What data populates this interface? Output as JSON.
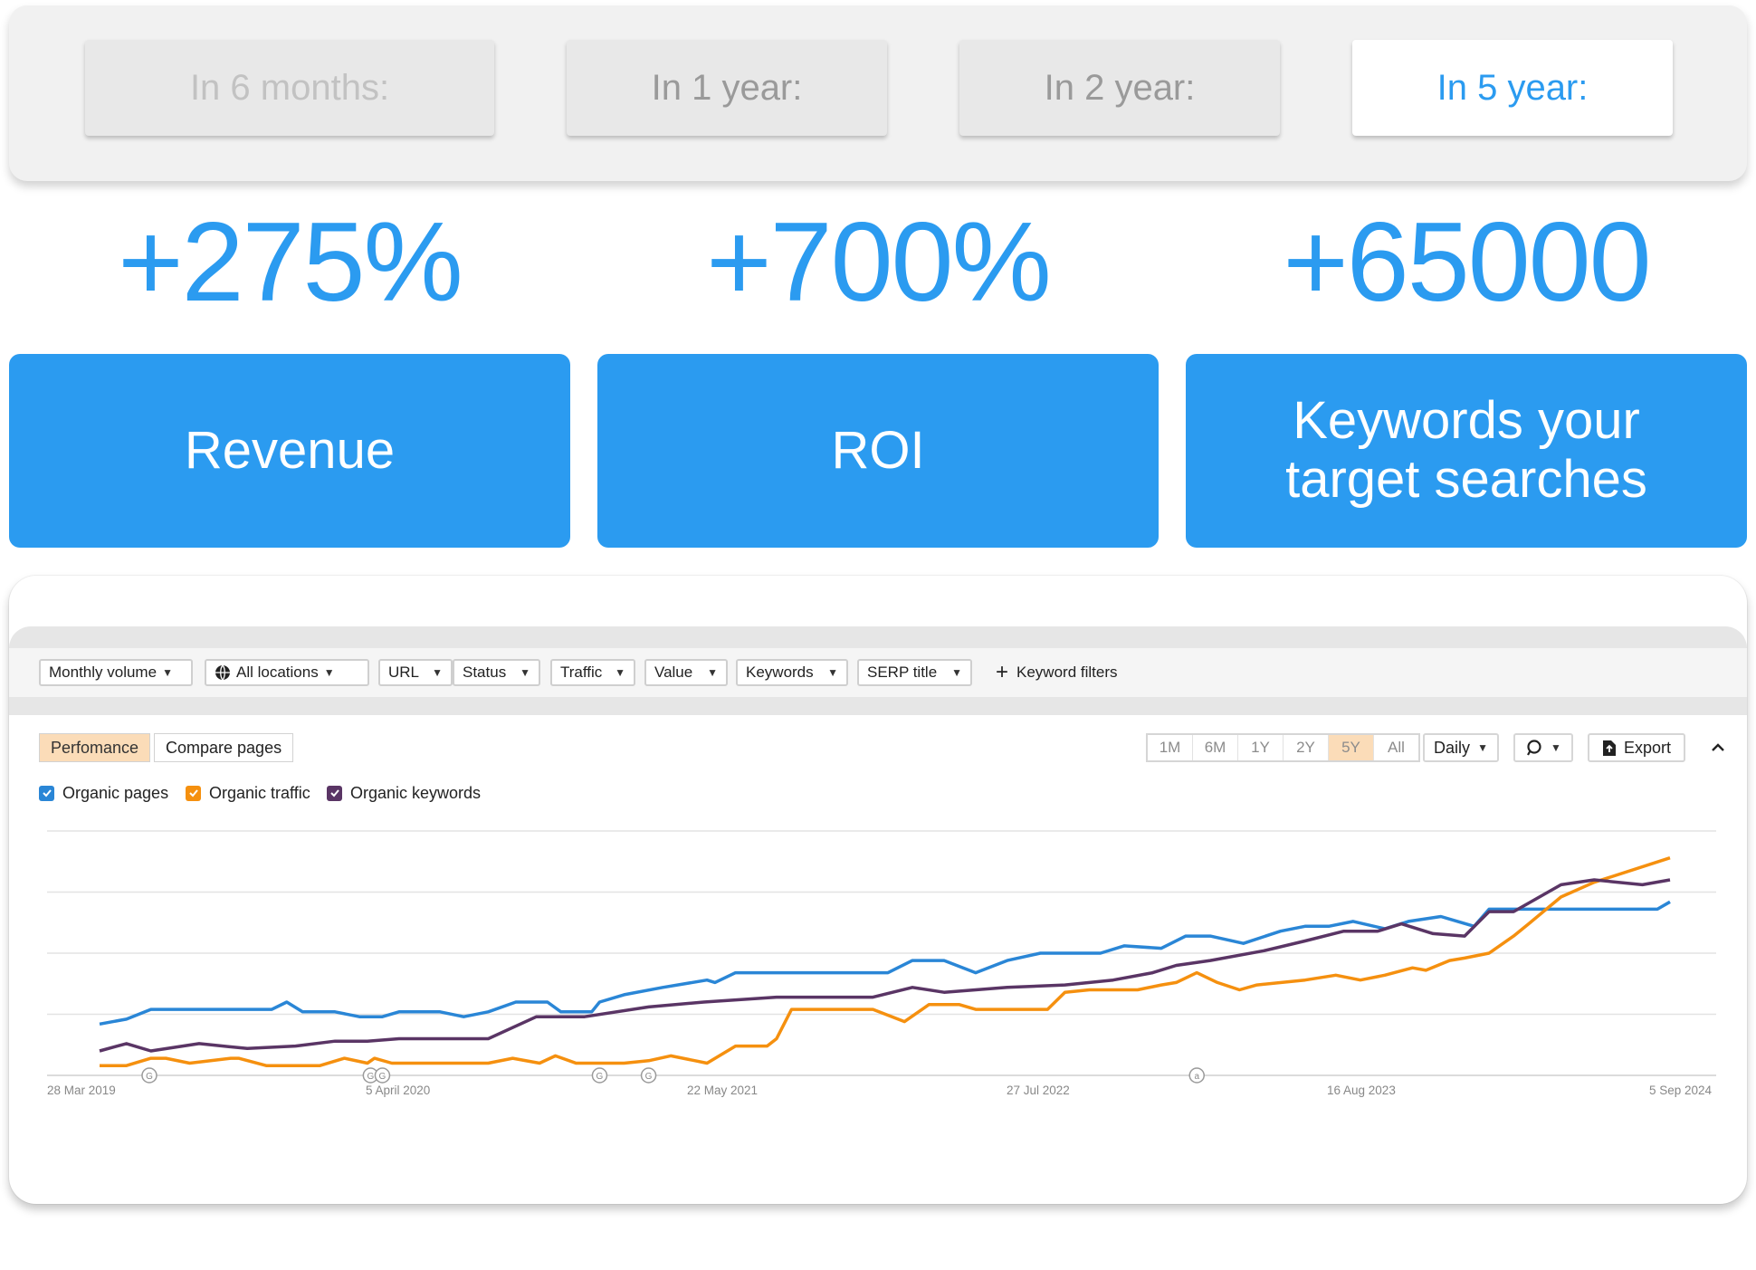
{
  "periods": [
    {
      "label": "In 6 months:",
      "state": "faded"
    },
    {
      "label": "In 1 year:",
      "state": "inactive"
    },
    {
      "label": "In 2 year:",
      "state": "inactive"
    },
    {
      "label": "In 5 year:",
      "state": "active"
    }
  ],
  "stats": [
    {
      "value": "+275%",
      "label": "Revenue"
    },
    {
      "value": "+700%",
      "label": "ROI"
    },
    {
      "value": "+65000",
      "label": "Keywords your\ntarget searches"
    }
  ],
  "filters": {
    "monthly_volume": "Monthly volume",
    "all_locations": "All locations",
    "url": "URL",
    "status": "Status",
    "traffic": "Traffic",
    "value": "Value",
    "keywords": "Keywords",
    "serp_title": "SERP title",
    "keyword_filters": "Keyword filters"
  },
  "view_tabs": {
    "performance": "Perfomance",
    "compare": "Compare pages"
  },
  "ranges": [
    "1M",
    "6M",
    "1Y",
    "2Y",
    "5Y",
    "All"
  ],
  "active_range": "5Y",
  "controls": {
    "interval": "Daily",
    "export": "Export"
  },
  "legend": {
    "organic_pages": "Organic pages",
    "organic_traffic": "Organic traffic",
    "organic_keywords": "Organic keywords"
  },
  "colors": {
    "accent": "#2b9bf0",
    "organic_pages": "#2a86d6",
    "organic_traffic": "#f5900f",
    "organic_keywords": "#5a3565"
  },
  "icons": {
    "location": "globe-icon",
    "add": "plus-icon",
    "comment": "comment-icon",
    "export": "export-icon",
    "collapse": "chevron-up-icon",
    "markers": [
      "google-update-marker",
      "annotation-marker"
    ]
  },
  "chart_data": {
    "type": "line",
    "x_tick_labels": [
      "28 Mar 2019",
      "5 April 2020",
      "22 May 2021",
      "27 Jul 2022",
      "16 Aug 2023",
      "5 Sep 2024"
    ],
    "x_range": [
      "2019-03-28",
      "2024-09-05"
    ],
    "y_axis_labels": "none",
    "gridlines": true,
    "legend_position": "top-left",
    "markers": [
      {
        "date": "2019-05-30",
        "label": "G"
      },
      {
        "date": "2020-03-05",
        "label": "G"
      },
      {
        "date": "2020-03-20",
        "label": "G"
      },
      {
        "date": "2020-12-20",
        "label": "G"
      },
      {
        "date": "2021-02-20",
        "label": "G"
      },
      {
        "date": "2023-01-15",
        "label": "a"
      }
    ],
    "series": [
      {
        "name": "Organic pages",
        "points": [
          [
            "2019-03-28",
            21
          ],
          [
            "2019-05-01",
            23
          ],
          [
            "2019-06-01",
            27
          ],
          [
            "2019-11-01",
            27
          ],
          [
            "2019-11-20",
            30
          ],
          [
            "2019-12-10",
            26
          ],
          [
            "2020-01-20",
            26
          ],
          [
            "2020-02-20",
            24
          ],
          [
            "2020-03-20",
            24
          ],
          [
            "2020-04-10",
            26
          ],
          [
            "2020-06-01",
            26
          ],
          [
            "2020-07-01",
            24
          ],
          [
            "2020-08-01",
            26
          ],
          [
            "2020-09-05",
            30
          ],
          [
            "2020-10-15",
            30
          ],
          [
            "2020-11-01",
            26
          ],
          [
            "2020-12-10",
            26
          ],
          [
            "2020-12-20",
            30
          ],
          [
            "2021-01-20",
            33
          ],
          [
            "2021-03-10",
            36
          ],
          [
            "2021-05-05",
            39
          ],
          [
            "2021-05-15",
            38
          ],
          [
            "2021-06-10",
            42
          ],
          [
            "2021-08-01",
            42
          ],
          [
            "2021-09-01",
            42
          ],
          [
            "2021-12-20",
            42
          ],
          [
            "2022-01-20",
            47
          ],
          [
            "2022-03-01",
            47
          ],
          [
            "2022-04-10",
            42
          ],
          [
            "2022-05-20",
            47
          ],
          [
            "2022-07-01",
            50
          ],
          [
            "2022-08-01",
            50
          ],
          [
            "2022-09-15",
            50
          ],
          [
            "2022-10-15",
            53
          ],
          [
            "2022-12-01",
            52
          ],
          [
            "2023-01-01",
            57
          ],
          [
            "2023-02-01",
            57
          ],
          [
            "2023-03-15",
            54
          ],
          [
            "2023-05-01",
            59
          ],
          [
            "2023-06-01",
            61
          ],
          [
            "2023-07-01",
            61
          ],
          [
            "2023-08-01",
            63
          ],
          [
            "2023-09-10",
            60
          ],
          [
            "2023-10-10",
            63
          ],
          [
            "2023-11-20",
            65
          ],
          [
            "2024-01-01",
            61
          ],
          [
            "2024-01-20",
            68
          ],
          [
            "2024-02-10",
            68
          ],
          [
            "2024-05-01",
            68
          ],
          [
            "2024-08-20",
            68
          ],
          [
            "2024-09-05",
            71
          ]
        ]
      },
      {
        "name": "Organic traffic",
        "points": [
          [
            "2019-03-28",
            4
          ],
          [
            "2019-05-01",
            4
          ],
          [
            "2019-06-01",
            7
          ],
          [
            "2019-06-20",
            7
          ],
          [
            "2019-07-20",
            5
          ],
          [
            "2019-09-10",
            7
          ],
          [
            "2019-09-20",
            7
          ],
          [
            "2019-10-25",
            4
          ],
          [
            "2019-12-01",
            4
          ],
          [
            "2020-01-01",
            4
          ],
          [
            "2020-02-01",
            7
          ],
          [
            "2020-03-01",
            5
          ],
          [
            "2020-03-10",
            7
          ],
          [
            "2020-04-01",
            5
          ],
          [
            "2020-06-01",
            5
          ],
          [
            "2020-08-01",
            5
          ],
          [
            "2020-09-01",
            7
          ],
          [
            "2020-10-05",
            5
          ],
          [
            "2020-10-25",
            8
          ],
          [
            "2020-11-20",
            5
          ],
          [
            "2020-12-10",
            5
          ],
          [
            "2021-01-20",
            5
          ],
          [
            "2021-02-20",
            6
          ],
          [
            "2021-03-20",
            8
          ],
          [
            "2021-04-20",
            6
          ],
          [
            "2021-05-05",
            5
          ],
          [
            "2021-06-10",
            12
          ],
          [
            "2021-07-20",
            12
          ],
          [
            "2021-08-01",
            15
          ],
          [
            "2021-08-20",
            27
          ],
          [
            "2021-12-01",
            27
          ],
          [
            "2022-01-10",
            22
          ],
          [
            "2022-02-10",
            29
          ],
          [
            "2022-03-20",
            29
          ],
          [
            "2022-04-10",
            27
          ],
          [
            "2022-06-01",
            27
          ],
          [
            "2022-07-10",
            27
          ],
          [
            "2022-08-01",
            34
          ],
          [
            "2022-09-01",
            35
          ],
          [
            "2022-11-01",
            35
          ],
          [
            "2022-12-01",
            37
          ],
          [
            "2022-12-20",
            38
          ],
          [
            "2023-01-15",
            42
          ],
          [
            "2023-02-10",
            38
          ],
          [
            "2023-03-10",
            35
          ],
          [
            "2023-04-01",
            37
          ],
          [
            "2023-06-01",
            39
          ],
          [
            "2023-07-10",
            41
          ],
          [
            "2023-08-10",
            39
          ],
          [
            "2023-09-10",
            41
          ],
          [
            "2023-10-15",
            44
          ],
          [
            "2023-11-01",
            43
          ],
          [
            "2023-12-01",
            47
          ],
          [
            "2023-12-20",
            48
          ],
          [
            "2024-01-20",
            50
          ],
          [
            "2024-02-20",
            57
          ],
          [
            "2024-03-10",
            62
          ],
          [
            "2024-04-20",
            73
          ],
          [
            "2024-06-01",
            79
          ],
          [
            "2024-09-05",
            89
          ]
        ]
      },
      {
        "name": "Organic keywords",
        "points": [
          [
            "2019-03-28",
            10
          ],
          [
            "2019-05-01",
            13
          ],
          [
            "2019-06-01",
            10
          ],
          [
            "2019-08-01",
            13
          ],
          [
            "2019-10-01",
            11
          ],
          [
            "2019-12-01",
            12
          ],
          [
            "2020-01-20",
            14
          ],
          [
            "2020-03-01",
            14
          ],
          [
            "2020-04-10",
            15
          ],
          [
            "2020-06-01",
            15
          ],
          [
            "2020-08-01",
            15
          ],
          [
            "2020-10-01",
            24
          ],
          [
            "2020-11-01",
            24
          ],
          [
            "2020-12-01",
            24
          ],
          [
            "2021-02-20",
            28
          ],
          [
            "2021-05-01",
            30
          ],
          [
            "2021-08-01",
            32
          ],
          [
            "2021-12-01",
            32
          ],
          [
            "2022-01-20",
            36
          ],
          [
            "2022-03-01",
            34
          ],
          [
            "2022-05-20",
            36
          ],
          [
            "2022-08-01",
            37
          ],
          [
            "2022-10-01",
            39
          ],
          [
            "2022-11-20",
            42
          ],
          [
            "2022-12-20",
            45
          ],
          [
            "2023-02-01",
            47
          ],
          [
            "2023-04-10",
            51
          ],
          [
            "2023-06-01",
            55
          ],
          [
            "2023-07-20",
            59
          ],
          [
            "2023-09-01",
            59
          ],
          [
            "2023-10-01",
            62
          ],
          [
            "2023-11-10",
            58
          ],
          [
            "2023-12-20",
            57
          ],
          [
            "2024-01-20",
            67
          ],
          [
            "2024-02-20",
            67
          ],
          [
            "2024-04-20",
            78
          ],
          [
            "2024-06-01",
            80
          ],
          [
            "2024-08-01",
            78
          ],
          [
            "2024-09-05",
            80
          ]
        ]
      }
    ]
  }
}
